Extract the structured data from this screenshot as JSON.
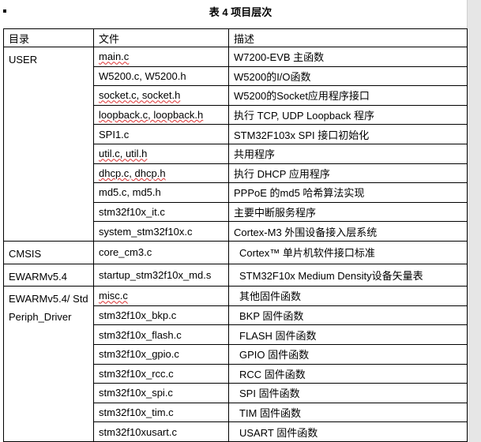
{
  "caption": "表 4 项目层次",
  "headers": [
    "目录",
    "文件",
    "描述"
  ],
  "groups": [
    {
      "dir": "USER",
      "rows": [
        {
          "file": "main.c",
          "desc": "W7200-EVB  主函数",
          "squiggle": true
        },
        {
          "file": "W5200.c, W5200.h",
          "desc": "W5200的I/O函数"
        },
        {
          "file": "socket.c, socket.h",
          "desc": "W5200的Socket应用程序接口",
          "squiggle": true
        },
        {
          "file": "loopback.c, loopback.h",
          "desc": "执行  TCP, UDP Loopback  程序",
          "squiggle": true
        },
        {
          "file": "SPI1.c",
          "desc": "STM32F103x  SPI  接口初始化"
        },
        {
          "file": "util.c, util.h",
          "desc": "共用程序",
          "squiggle": true
        },
        {
          "file": "dhcp.c, dhcp.h",
          "desc": "执行  DHCP  应用程序",
          "squiggle": true
        },
        {
          "file": "md5.c, md5.h",
          "desc": "PPPoE  的md5  哈希算法实现"
        },
        {
          "file": "stm32f10x_it.c",
          "desc": "主要中断服务程序"
        },
        {
          "file": "system_stm32f10x.c",
          "desc": "Cortex-M3  外围设备接入层系统"
        }
      ]
    },
    {
      "dir": "CMSIS",
      "rows": [
        {
          "file": "core_cm3.c",
          "desc": "Cortex™ 单片机软件接口标准",
          "indent": true
        }
      ]
    },
    {
      "dir": "EWARMv5.4",
      "rows": [
        {
          "file": "startup_stm32f10x_md.s",
          "desc": "STM32F10x Medium Density设备矢量表",
          "indent": true
        }
      ]
    },
    {
      "dir": "EWARMv5.4/ StdPeriph_Driver",
      "rows": [
        {
          "file": "misc.c",
          "desc": "其他固件函数",
          "indent": true,
          "squiggle": true
        },
        {
          "file": "stm32f10x_bkp.c",
          "desc": "BKP 固件函数",
          "indent": true
        },
        {
          "file": "stm32f10x_flash.c",
          "desc": "FLASH  固件函数",
          "indent": true
        },
        {
          "file": "stm32f10x_gpio.c",
          "desc": "GPIO  固件函数",
          "indent": true
        },
        {
          "file": "stm32f10x_rcc.c",
          "desc": "RCC  固件函数",
          "indent": true
        },
        {
          "file": "stm32f10x_spi.c",
          "desc": "SPI  固件函数",
          "indent": true
        },
        {
          "file": "stm32f10x_tim.c",
          "desc": "TIM  固件函数",
          "indent": true
        },
        {
          "file": "stm32f10xusart.c",
          "desc": "USART  固件函数",
          "indent": true
        }
      ]
    }
  ]
}
